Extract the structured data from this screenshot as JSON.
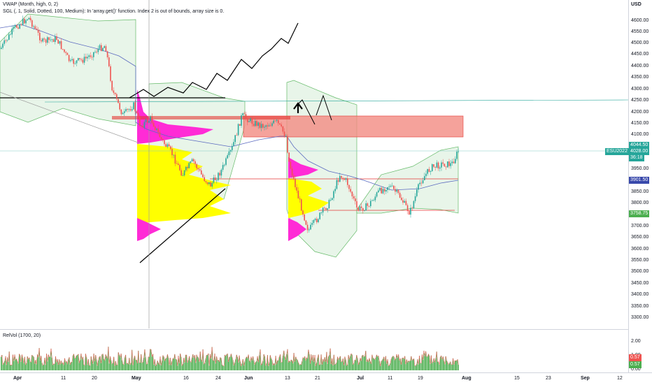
{
  "indicators": {
    "vwap": "VWAP (Month, high, 0, 2)",
    "sgl": "SGL (, 1, Solid, Dotted, 100, Medium): In 'array.get()' function. Index 2 is out of bounds, array size is 0.",
    "relvol": "RelVol (1700, 20)"
  },
  "axis": {
    "currency": "USD",
    "price_ticks": [
      "4600.00",
      "4550.00",
      "4500.00",
      "4450.00",
      "4400.00",
      "4350.00",
      "4300.00",
      "4250.00",
      "4200.00",
      "4150.00",
      "4100.00",
      "4050.00",
      "3950.00",
      "3900.00",
      "3850.00",
      "3800.00",
      "3750.00",
      "3700.00",
      "3650.00",
      "3600.00",
      "3550.00",
      "3500.00",
      "3450.00",
      "3400.00",
      "3350.00",
      "3300.00"
    ],
    "vol_ticks": [
      "2.00",
      "1.00",
      "0.00"
    ],
    "time_ticks": [
      "Apr",
      "11",
      "20",
      "May",
      "16",
      "24",
      "Jun",
      "13",
      "21",
      "Jul",
      "11",
      "19",
      "Aug",
      "15",
      "23",
      "Sep",
      "12"
    ]
  },
  "badges": {
    "price_top": "4044.50",
    "price_last": "4028.00",
    "countdown": "36:18",
    "vwap_level": "3901.50",
    "low_level": "3758.75",
    "symbol": "ESU2022",
    "vol_a": "0.57",
    "vol_b": "0.57"
  },
  "colors": {
    "up": "#26a69a",
    "down": "#ef5350",
    "magenta": "#ff2bd6",
    "yellow": "#ffff00",
    "zone": "#f28b82",
    "vwap_blue": "#3f51b5",
    "band_green": "#66bb6a",
    "vol_green": "#4caf50",
    "vwap_badge": "#3949ab",
    "price_badge": "#26a69a",
    "low_badge": "#4caf50"
  }
}
